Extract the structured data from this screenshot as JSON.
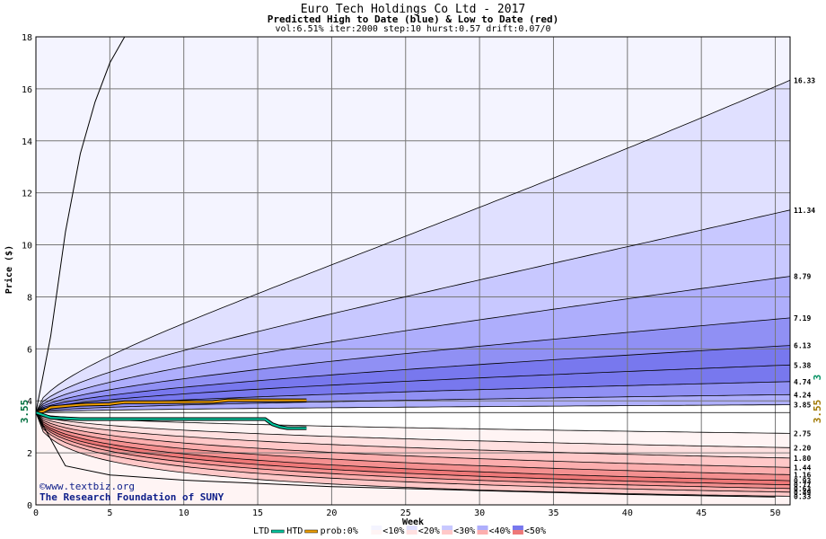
{
  "titles": {
    "main": "Euro Tech Holdings Co Ltd - 2017",
    "sub": "Predicted High to Date (blue) &  Low to Date (red)",
    "params": "vol:6.51% iter:2000 step:10 hurst:0.57 drift:0.07/0"
  },
  "watermark": {
    "line1": "©www.textbiz.org",
    "line2": "The Research Foundation of SUNY"
  },
  "legend": {
    "ltd": "LTD",
    "htd": "HTD",
    "prob": "prob:0%",
    "bins": [
      "<10%",
      "<20%",
      "<30%",
      "<40%",
      "<50%"
    ]
  },
  "colors": {
    "ltd_line": "#00c8a0",
    "htd_line": "#f0a000",
    "blue_bands": [
      "#f4f4ff",
      "#e0e0ff",
      "#c8c8ff",
      "#aeaefc",
      "#9090f4",
      "#7878ee"
    ],
    "red_bands": [
      "#fff4f4",
      "#ffe0e0",
      "#ffc8c8",
      "#fcaeae",
      "#f49090",
      "#ee7878"
    ]
  },
  "side_labels": {
    "left_price": "3.55",
    "right_gold": "3.55",
    "right_green": "3"
  },
  "chart_data": {
    "type": "area",
    "title": "Euro Tech Holdings Co Ltd - 2017",
    "xlabel": "Week",
    "ylabel": "Price ($)",
    "xlim": [
      0,
      51
    ],
    "ylim": [
      0,
      18
    ],
    "xticks": [
      0,
      5,
      10,
      15,
      20,
      25,
      30,
      35,
      40,
      45,
      50
    ],
    "yticks": [
      0,
      2,
      4,
      6,
      8,
      10,
      12,
      14,
      16,
      18
    ],
    "grid": true,
    "start_price": 3.55,
    "upper_percentile_curves": [
      {
        "end": 16.33,
        "label": "16.33"
      },
      {
        "end": 11.34,
        "label": "11.34"
      },
      {
        "end": 8.79,
        "label": "8.79"
      },
      {
        "end": 7.19,
        "label": "7.19"
      },
      {
        "end": 6.13,
        "label": "6.13"
      },
      {
        "end": 5.38,
        "label": "5.38"
      },
      {
        "end": 4.74,
        "label": "4.74"
      },
      {
        "end": 4.24,
        "label": "4.24"
      },
      {
        "end": 3.85,
        "label": "3.85"
      }
    ],
    "lower_percentile_curves": [
      {
        "end": 2.75,
        "label": "2.75"
      },
      {
        "end": 2.2,
        "label": "2.20"
      },
      {
        "end": 1.8,
        "label": "1.80"
      },
      {
        "end": 1.44,
        "label": "1.44"
      },
      {
        "end": 1.16,
        "label": "1.16"
      },
      {
        "end": 0.93,
        "label": "0.93"
      },
      {
        "end": 0.77,
        "label": "0.77"
      },
      {
        "end": 0.63,
        "label": "0.63"
      },
      {
        "end": 0.49,
        "label": "0.49"
      },
      {
        "end": 0.33,
        "label": "0.33"
      }
    ],
    "outer_high_curve": {
      "x": [
        0,
        1,
        2,
        3,
        4,
        5,
        6
      ],
      "y": [
        3.55,
        6.5,
        10.5,
        13.5,
        15.5,
        17,
        18
      ]
    },
    "outer_low_curve": {
      "x": [
        0,
        2,
        5,
        10,
        20,
        30,
        40,
        50
      ],
      "y": [
        3.55,
        1.5,
        1.15,
        0.95,
        0.7,
        0.55,
        0.4,
        0.3
      ]
    },
    "series": [
      {
        "name": "HTD",
        "x": [
          0,
          0.5,
          1,
          2,
          3,
          5,
          6,
          8,
          12,
          13,
          15,
          18.3
        ],
        "y": [
          3.55,
          3.6,
          3.75,
          3.8,
          3.85,
          3.88,
          3.95,
          3.95,
          3.96,
          4.02,
          4.02,
          4.02
        ]
      },
      {
        "name": "LTD",
        "x": [
          0,
          1,
          3,
          5,
          8,
          12,
          15.5,
          16,
          16.5,
          17,
          18.3
        ],
        "y": [
          3.55,
          3.35,
          3.3,
          3.3,
          3.3,
          3.3,
          3.3,
          3.1,
          3.0,
          2.95,
          2.95
        ]
      }
    ]
  }
}
